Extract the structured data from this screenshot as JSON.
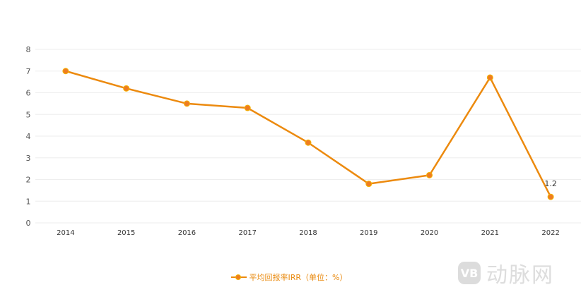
{
  "chart_data": {
    "type": "line",
    "title": "",
    "xlabel": "",
    "ylabel": "",
    "categories": [
      "2014",
      "2015",
      "2016",
      "2017",
      "2018",
      "2019",
      "2020",
      "2021",
      "2022"
    ],
    "series": [
      {
        "name": "平均回报率IRR（单位：%）",
        "values": [
          7.0,
          6.2,
          5.5,
          5.3,
          3.7,
          1.8,
          2.2,
          6.7,
          1.2
        ],
        "color": "#ec8a0e",
        "marker_color": "#ee7d22",
        "marker_border": "#f5b400"
      }
    ],
    "ylim": [
      0,
      8
    ],
    "yticks": [
      "0",
      "1",
      "2",
      "3",
      "4",
      "5",
      "6",
      "7",
      "8"
    ],
    "grid": true,
    "legend_position": "bottom",
    "annotations": [
      {
        "category": "2022",
        "text": "1.2"
      }
    ]
  },
  "legend": {
    "label": "平均回报率IRR（单位：%）"
  },
  "watermark": {
    "logo": "VB",
    "text": "动脉网"
  }
}
